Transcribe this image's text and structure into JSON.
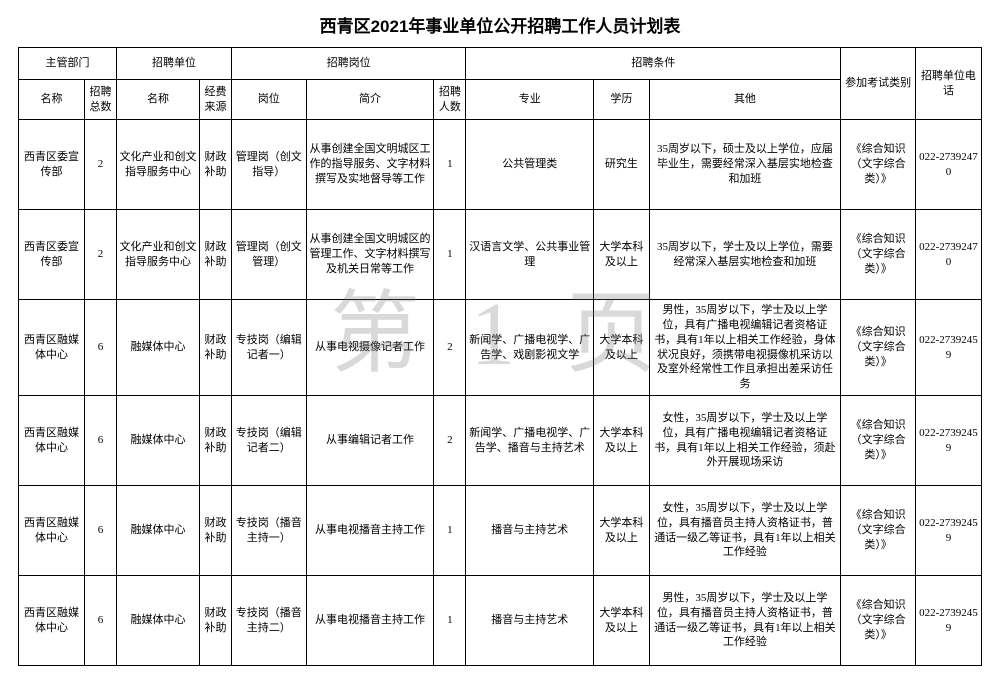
{
  "title": "西青区2021年事业单位公开招聘工作人员计划表",
  "watermark": "第 1 页",
  "header": {
    "group_dept": "主管部门",
    "group_unit": "招聘单位",
    "group_post": "招聘岗位",
    "group_cond": "招聘条件",
    "exam": "参加考试类别",
    "tel": "招聘单位电话",
    "dept_name": "名称",
    "total": "招聘总数",
    "unit_name": "名称",
    "fund": "经费来源",
    "post": "岗位",
    "desc": "简介",
    "num": "招聘人数",
    "major": "专业",
    "edu": "学历",
    "other": "其他"
  },
  "rows": [
    {
      "dept": "西青区委宣传部",
      "total": "2",
      "unit": "文化产业和创文指导服务中心",
      "fund": "财政补助",
      "post": "管理岗（创文指导）",
      "desc": "从事创建全国文明城区工作的指导服务、文字材料撰写及实地督导等工作",
      "num": "1",
      "major": "公共管理类",
      "edu": "研究生",
      "other": "35周岁以下，硕士及以上学位，应届毕业生，需要经常深入基层实地检查和加班",
      "exam": "《综合知识（文字综合类）》",
      "tel": "022-27392470"
    },
    {
      "dept": "西青区委宣传部",
      "total": "2",
      "unit": "文化产业和创文指导服务中心",
      "fund": "财政补助",
      "post": "管理岗（创文管理）",
      "desc": "从事创建全国文明城区的管理工作、文字材料撰写及机关日常等工作",
      "num": "1",
      "major": "汉语言文学、公共事业管理",
      "edu": "大学本科及以上",
      "other": "35周岁以下，学士及以上学位，需要经常深入基层实地检查和加班",
      "exam": "《综合知识（文字综合类）》",
      "tel": "022-27392470"
    },
    {
      "dept": "西青区融媒体中心",
      "total": "6",
      "unit": "融媒体中心",
      "fund": "财政补助",
      "post": "专技岗（编辑记者一）",
      "desc": "从事电视摄像记者工作",
      "num": "2",
      "major": "新闻学、广播电视学、广告学、戏剧影视文学",
      "edu": "大学本科及以上",
      "other": "男性，35周岁以下，学士及以上学位，具有广播电视编辑记者资格证书，具有1年以上相关工作经验，身体状况良好，须携带电视摄像机采访以及室外经常性工作且承担出差采访任务",
      "exam": "《综合知识（文字综合类）》",
      "tel": "022-27392459"
    },
    {
      "dept": "西青区融媒体中心",
      "total": "6",
      "unit": "融媒体中心",
      "fund": "财政补助",
      "post": "专技岗（编辑记者二）",
      "desc": "从事编辑记者工作",
      "num": "2",
      "major": "新闻学、广播电视学、广告学、播音与主持艺术",
      "edu": "大学本科及以上",
      "other": "女性，35周岁以下，学士及以上学位，具有广播电视编辑记者资格证书，具有1年以上相关工作经验，须赴外开展现场采访",
      "exam": "《综合知识（文字综合类）》",
      "tel": "022-27392459"
    },
    {
      "dept": "西青区融媒体中心",
      "total": "6",
      "unit": "融媒体中心",
      "fund": "财政补助",
      "post": "专技岗（播音主持一）",
      "desc": "从事电视播音主持工作",
      "num": "1",
      "major": "播音与主持艺术",
      "edu": "大学本科及以上",
      "other": "女性，35周岁以下，学士及以上学位，具有播音员主持人资格证书，普通话一级乙等证书，具有1年以上相关工作经验",
      "exam": "《综合知识（文字综合类）》",
      "tel": "022-27392459"
    },
    {
      "dept": "西青区融媒体中心",
      "total": "6",
      "unit": "融媒体中心",
      "fund": "财政补助",
      "post": "专技岗（播音主持二）",
      "desc": "从事电视播音主持工作",
      "num": "1",
      "major": "播音与主持艺术",
      "edu": "大学本科及以上",
      "other": "男性，35周岁以下，学士及以上学位，具有播音员主持人资格证书，普通话一级乙等证书，具有1年以上相关工作经验",
      "exam": "《综合知识（文字综合类）》",
      "tel": "022-27392459"
    }
  ]
}
